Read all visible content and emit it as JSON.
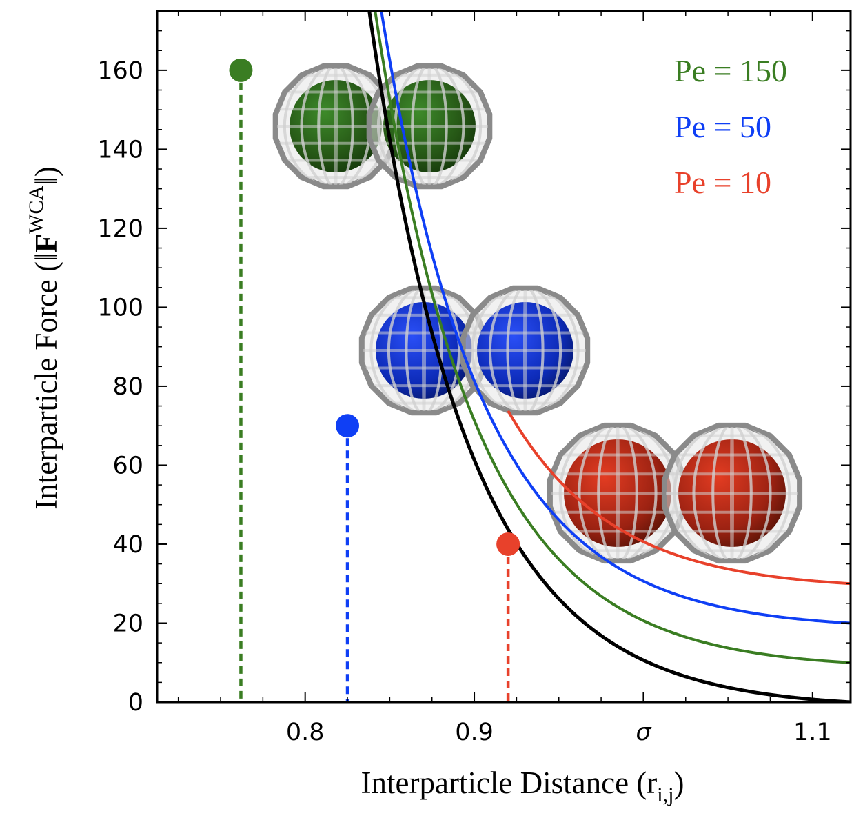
{
  "chart_data": {
    "type": "line",
    "xlabel": "Interparticle Distance (r",
    "xlabel_sub": "i,j",
    "xlabel_close": ")",
    "ylabel": "Interparticle Force (‖",
    "ylabel_bold": "F",
    "ylabel_sup": "WCA",
    "ylabel_close": "‖)",
    "xlim": [
      0.7125,
      1.1225
    ],
    "ylim": [
      0,
      175
    ],
    "sigma": 1.0,
    "xticks": [
      {
        "value": 0.8,
        "label": "0.8"
      },
      {
        "value": 0.9,
        "label": "0.9"
      },
      {
        "value": 1.0,
        "label": "σ"
      },
      {
        "value": 1.1,
        "label": "1.1"
      }
    ],
    "yticks": [
      0,
      20,
      40,
      60,
      80,
      100,
      120,
      140,
      160
    ],
    "yticks_labels": [
      "0",
      "20",
      "40",
      "60",
      "80",
      "100",
      "120",
      "140",
      "160"
    ],
    "curve_color": "#000000",
    "series": [
      {
        "name": "Pe = 150",
        "color": "#3a7d22",
        "offset": 10,
        "peak_y": 160,
        "peak_x": 0.762
      },
      {
        "name": "Pe = 50",
        "color": "#0f3ff5",
        "offset": 20,
        "peak_y": 70,
        "peak_x": 0.825
      },
      {
        "name": "Pe = 10",
        "color": "#e8412b",
        "offset": 30,
        "peak_y": 40,
        "peak_x": 0.92
      }
    ],
    "legend_position": "top-right",
    "grid": false
  }
}
